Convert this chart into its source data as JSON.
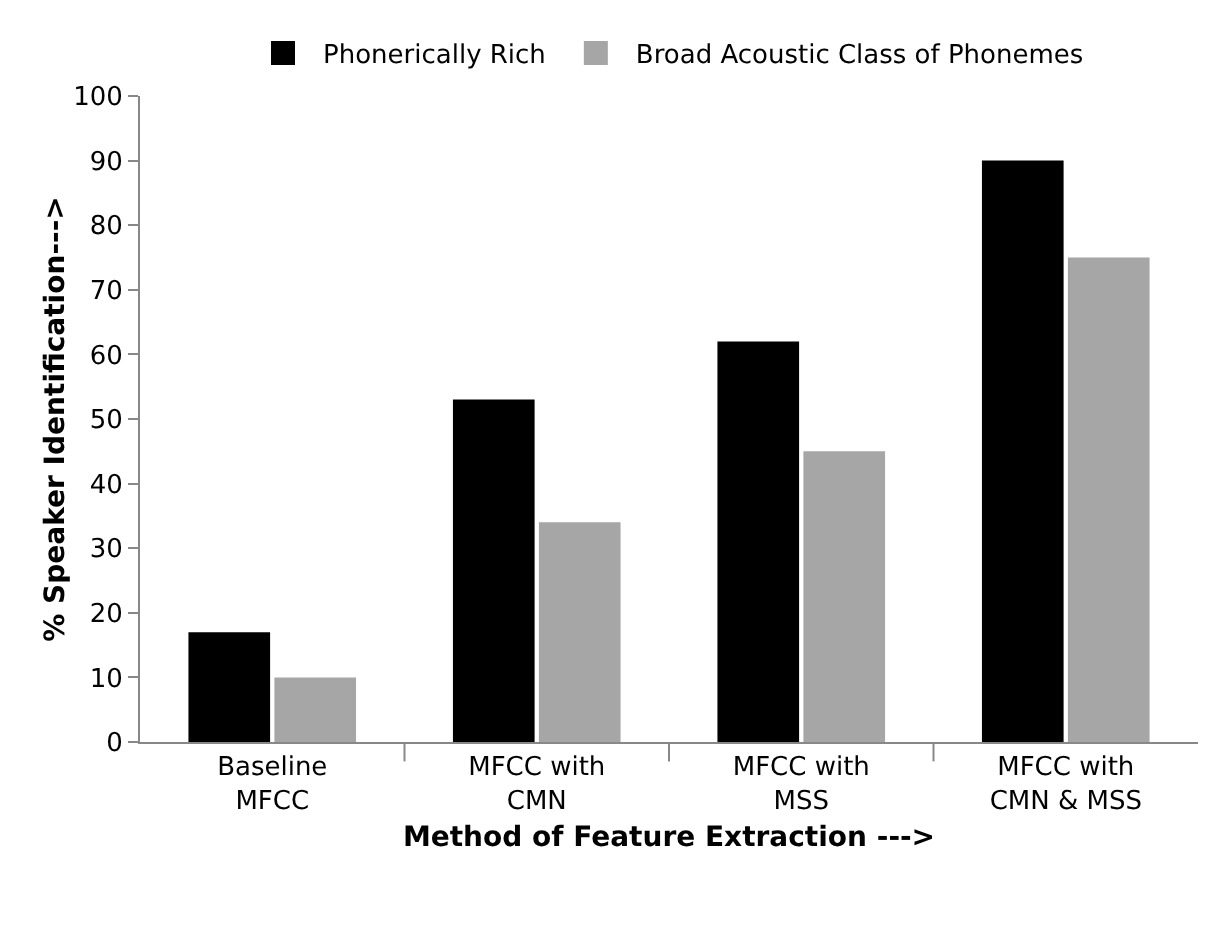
{
  "chart_data": {
    "type": "bar",
    "xlabel": "Method of Feature Extraction --->",
    "ylabel": "% Speaker Identification--->",
    "categories": [
      "Baseline\nMFCC",
      "MFCC with\nCMN",
      "MFCC with\nMSS",
      "MFCC with\nCMN & MSS"
    ],
    "series": [
      {
        "name": "Phonerically Rich",
        "color": "#000000",
        "values": [
          17,
          53,
          62,
          90
        ]
      },
      {
        "name": "Broad Acoustic Class of Phonemes",
        "color": "#a6a6a6",
        "values": [
          10,
          34,
          45,
          75
        ]
      }
    ],
    "ylim": [
      0,
      100
    ],
    "yticks": [
      0,
      10,
      20,
      30,
      40,
      50,
      60,
      70,
      80,
      90,
      100
    ],
    "grid": false,
    "legend": "top"
  }
}
